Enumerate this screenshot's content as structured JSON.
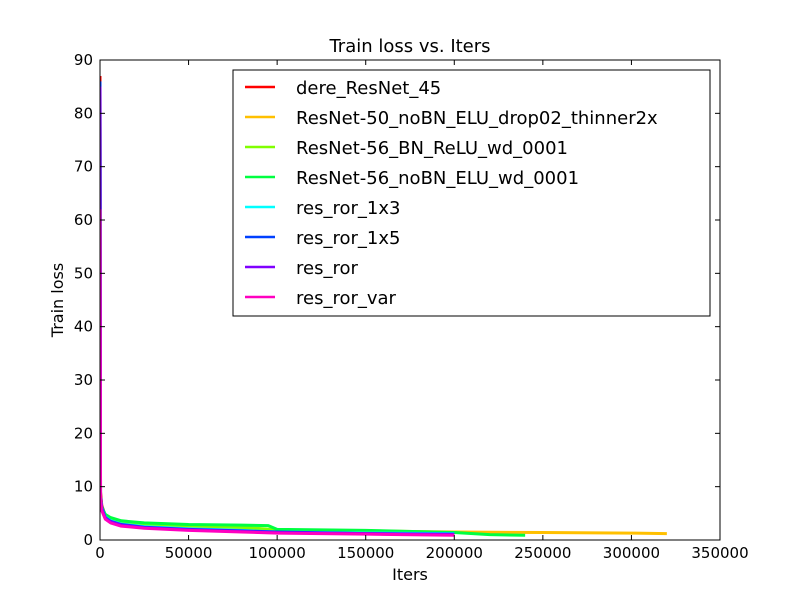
{
  "chart_data": {
    "type": "line",
    "title": "Train loss  vs. Iters",
    "xlabel": "Iters",
    "ylabel": "Train loss",
    "xlim": [
      0,
      350000
    ],
    "ylim": [
      0,
      90
    ],
    "x_ticks": [
      0,
      50000,
      100000,
      150000,
      200000,
      250000,
      300000,
      350000
    ],
    "y_ticks": [
      0,
      10,
      20,
      30,
      40,
      50,
      60,
      70,
      80,
      90
    ],
    "grid": false,
    "legend_position": "top-right",
    "series": [
      {
        "name": "dere_ResNet_45",
        "color": "#ff0000",
        "x": [
          0,
          300,
          1000,
          3000,
          6000,
          12000,
          25000,
          50000,
          80000,
          100000,
          150000,
          200000
        ],
        "y": [
          87,
          9,
          6.5,
          4.5,
          3.6,
          3.0,
          2.5,
          2.1,
          1.8,
          1.6,
          1.3,
          1.1
        ]
      },
      {
        "name": "ResNet-50_noBN_ELU_drop02_thinner2x",
        "color": "#ffc000",
        "x": [
          0,
          300,
          1000,
          3000,
          6000,
          12000,
          25000,
          50000,
          80000,
          100000,
          150000,
          200000,
          250000,
          300000,
          320000
        ],
        "y": [
          60,
          8,
          6.0,
          4.5,
          3.8,
          3.2,
          2.8,
          2.4,
          2.1,
          1.9,
          1.7,
          1.5,
          1.4,
          1.3,
          1.2
        ]
      },
      {
        "name": "ResNet-56_BN_ReLU_wd_0001",
        "color": "#80ff00",
        "x": [
          0,
          300,
          1000,
          3000,
          6000,
          12000,
          25000,
          50000,
          80000,
          100000,
          150000,
          200000
        ],
        "y": [
          80,
          8,
          6.0,
          4.6,
          4.0,
          3.4,
          3.0,
          2.7,
          2.4,
          1.9,
          1.5,
          1.2
        ]
      },
      {
        "name": "ResNet-56_noBN_ELU_wd_0001",
        "color": "#00ff40",
        "x": [
          0,
          300,
          1000,
          3000,
          6000,
          12000,
          25000,
          50000,
          80000,
          95000,
          100000,
          150000,
          200000,
          220000,
          240000
        ],
        "y": [
          85,
          8,
          6.2,
          4.8,
          4.2,
          3.6,
          3.2,
          2.9,
          2.8,
          2.7,
          2.0,
          1.8,
          1.4,
          1.0,
          0.9
        ]
      },
      {
        "name": "res_ror_1x3",
        "color": "#00ffff",
        "x": [
          0,
          300,
          1000,
          3000,
          6000,
          12000,
          25000,
          50000,
          80000,
          100000,
          150000,
          200000
        ],
        "y": [
          84,
          8,
          6.0,
          4.3,
          3.6,
          3.0,
          2.5,
          2.1,
          1.8,
          1.5,
          1.3,
          1.2
        ]
      },
      {
        "name": "res_ror_1x5",
        "color": "#0040ff",
        "x": [
          0,
          300,
          1000,
          3000,
          6000,
          12000,
          25000,
          50000,
          80000,
          100000,
          150000,
          200000
        ],
        "y": [
          86,
          8,
          6.0,
          4.2,
          3.5,
          2.9,
          2.4,
          2.0,
          1.7,
          1.5,
          1.2,
          1.1
        ]
      },
      {
        "name": "res_ror",
        "color": "#8000ff",
        "x": [
          0,
          300,
          1000,
          3000,
          6000,
          12000,
          25000,
          50000,
          80000,
          100000,
          150000,
          200000
        ],
        "y": [
          85,
          8,
          5.8,
          4.1,
          3.4,
          2.8,
          2.3,
          1.9,
          1.6,
          1.4,
          1.2,
          1.0
        ]
      },
      {
        "name": "res_ror_var",
        "color": "#ff00c0",
        "x": [
          0,
          300,
          1000,
          3000,
          6000,
          12000,
          25000,
          50000,
          80000,
          100000,
          150000,
          200000
        ],
        "y": [
          62,
          7.5,
          5.5,
          3.9,
          3.2,
          2.6,
          2.2,
          1.8,
          1.5,
          1.3,
          1.1,
          0.9
        ]
      }
    ]
  }
}
